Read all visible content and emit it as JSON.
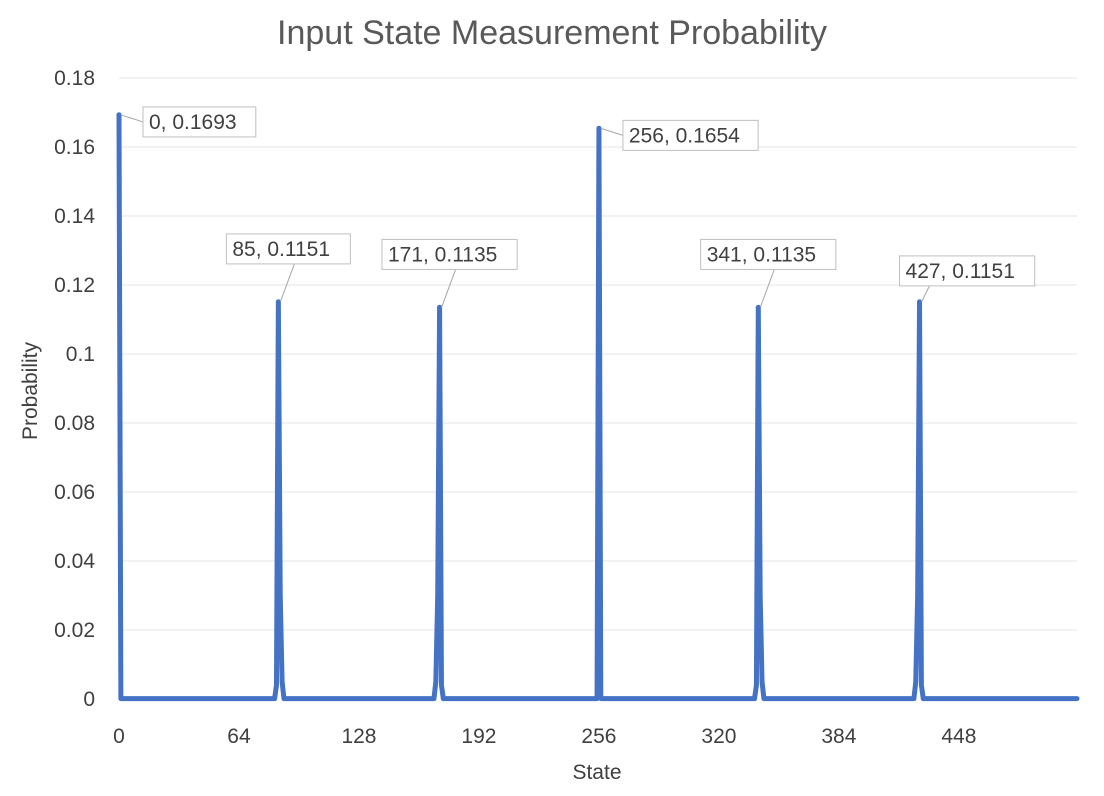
{
  "chart_data": {
    "type": "line",
    "title": "Input State Measurement Probability",
    "xlabel": "State",
    "ylabel": "Probability",
    "xlim": [
      0,
      511
    ],
    "ylim": [
      0,
      0.18
    ],
    "x_ticks": [
      0,
      64,
      128,
      192,
      256,
      320,
      384,
      448
    ],
    "y_ticks": [
      0,
      0.02,
      0.04,
      0.06,
      0.08,
      0.1,
      0.12,
      0.14,
      0.16,
      0.18
    ],
    "y_tick_labels": [
      "0",
      "0.02",
      "0.04",
      "0.06",
      "0.08",
      "0.1",
      "0.12",
      "0.14",
      "0.16",
      "0.18"
    ],
    "grid": true,
    "legend": "none",
    "series_color": "#4472c4",
    "baseline_probability": 0.0001,
    "peaks": [
      {
        "x": 0,
        "y": 0.1693,
        "label": "0, 0.1693",
        "label_position": "right"
      },
      {
        "x": 85,
        "y": 0.1151,
        "label": "85, 0.1151",
        "label_position": "top"
      },
      {
        "x": 171,
        "y": 0.1135,
        "label": "171, 0.1135",
        "label_position": "top"
      },
      {
        "x": 256,
        "y": 0.1654,
        "label": "256, 0.1654",
        "label_position": "right"
      },
      {
        "x": 341,
        "y": 0.1135,
        "label": "341, 0.1135",
        "label_position": "top"
      },
      {
        "x": 427,
        "y": 0.1151,
        "label": "427, 0.1151",
        "label_position": "top-right"
      }
    ],
    "sidelobes": [
      {
        "x": 84,
        "y": 0.004
      },
      {
        "x": 86,
        "y": 0.03
      },
      {
        "x": 87,
        "y": 0.005
      },
      {
        "x": 170,
        "y": 0.03
      },
      {
        "x": 172,
        "y": 0.004
      },
      {
        "x": 169,
        "y": 0.005
      },
      {
        "x": 340,
        "y": 0.004
      },
      {
        "x": 342,
        "y": 0.03
      },
      {
        "x": 343,
        "y": 0.005
      },
      {
        "x": 426,
        "y": 0.03
      },
      {
        "x": 428,
        "y": 0.004
      },
      {
        "x": 425,
        "y": 0.005
      }
    ]
  }
}
